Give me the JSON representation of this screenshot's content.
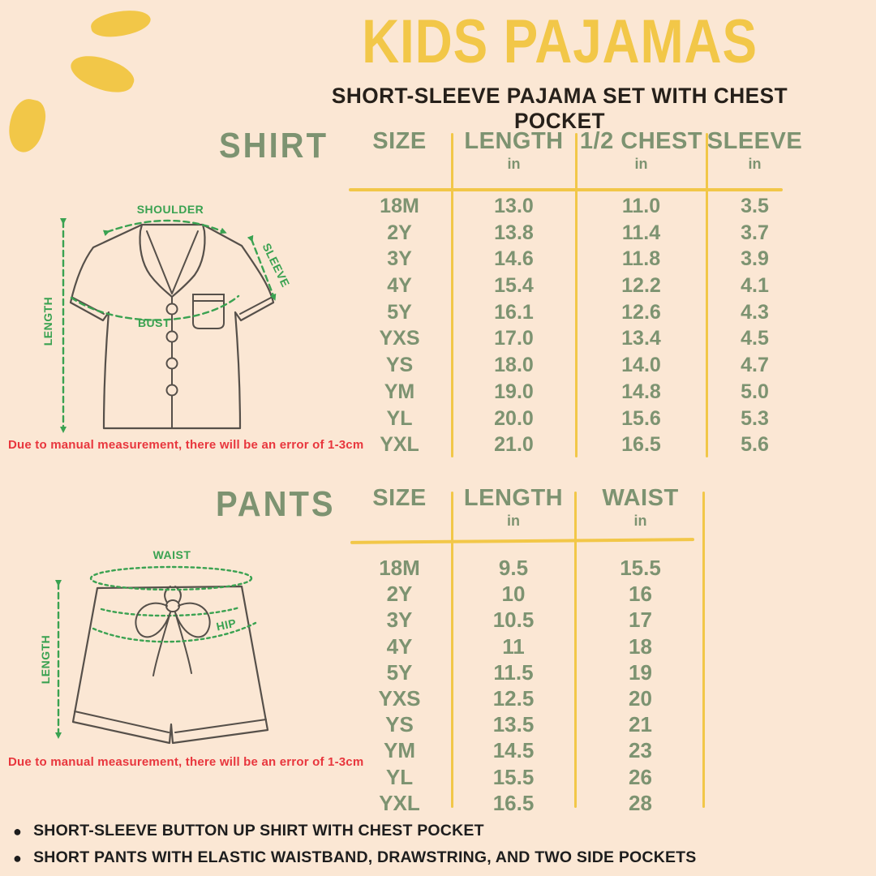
{
  "header": {
    "title": "KIDS PAJAMAS",
    "subtitle": "SHORT-SLEEVE PAJAMA SET WITH CHEST POCKET"
  },
  "shirt_section": {
    "label": "SHIRT",
    "diagram": {
      "shoulder": "SHOULDER",
      "sleeve": "SLEEVE",
      "length": "LENGTH",
      "bust": "BUST"
    },
    "disclaimer": "Due to manual measurement, there will be an error of 1-3cm"
  },
  "pants_section": {
    "label": "PANTS",
    "diagram": {
      "waist": "WAIST",
      "hip": "HIP",
      "length": "LENGTH"
    },
    "disclaimer": "Due to manual measurement, there will be an error of 1-3cm"
  },
  "footer_bullets": [
    "SHORT-SLEEVE BUTTON UP SHIRT WITH CHEST POCKET",
    "SHORT PANTS WITH ELASTIC WAISTBAND, DRAWSTRING, AND TWO SIDE POCKETS"
  ],
  "colors": {
    "background": "#fbe7d4",
    "accent_yellow": "#f2c748",
    "sage_green": "#7d9371",
    "bright_green": "#3aa251",
    "alert_red": "#e8363d",
    "text_dark": "#26201a",
    "outline_gray": "#56504a"
  },
  "chart_data": [
    {
      "type": "table",
      "title": "SHIRT",
      "columns": [
        "SIZE",
        "LENGTH",
        "1/2 CHEST",
        "SLEEVE"
      ],
      "units": [
        "",
        "in",
        "in",
        "in"
      ],
      "rows": [
        [
          "18M",
          "13.0",
          "11.0",
          "3.5"
        ],
        [
          "2Y",
          "13.8",
          "11.4",
          "3.7"
        ],
        [
          "3Y",
          "14.6",
          "11.8",
          "3.9"
        ],
        [
          "4Y",
          "15.4",
          "12.2",
          "4.1"
        ],
        [
          "5Y",
          "16.1",
          "12.6",
          "4.3"
        ],
        [
          "YXS",
          "17.0",
          "13.4",
          "4.5"
        ],
        [
          "YS",
          "18.0",
          "14.0",
          "4.7"
        ],
        [
          "YM",
          "19.0",
          "14.8",
          "5.0"
        ],
        [
          "YL",
          "20.0",
          "15.6",
          "5.3"
        ],
        [
          "YXL",
          "21.0",
          "16.5",
          "5.6"
        ]
      ]
    },
    {
      "type": "table",
      "title": "PANTS",
      "columns": [
        "SIZE",
        "LENGTH",
        "WAIST"
      ],
      "units": [
        "",
        "in",
        "in"
      ],
      "rows": [
        [
          "18M",
          "9.5",
          "15.5"
        ],
        [
          "2Y",
          "10",
          "16"
        ],
        [
          "3Y",
          "10.5",
          "17"
        ],
        [
          "4Y",
          "11",
          "18"
        ],
        [
          "5Y",
          "11.5",
          "19"
        ],
        [
          "YXS",
          "12.5",
          "20"
        ],
        [
          "YS",
          "13.5",
          "21"
        ],
        [
          "YM",
          "14.5",
          "23"
        ],
        [
          "YL",
          "15.5",
          "26"
        ],
        [
          "YXL",
          "16.5",
          "28"
        ]
      ]
    }
  ]
}
